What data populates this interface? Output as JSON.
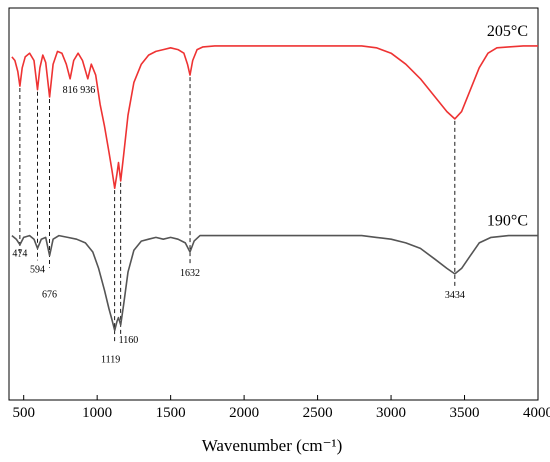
{
  "chart_data": {
    "type": "line",
    "title": "",
    "xlabel": "Wavenumber (cm⁻¹)",
    "ylabel": "",
    "xlim": [
      400,
      4000
    ],
    "x_ticks": [
      "500",
      "1000",
      "1500",
      "2000",
      "2500",
      "3000",
      "3500",
      "4000"
    ],
    "y_ticks": [],
    "grid": false,
    "series": [
      {
        "name": "205°C",
        "color": "#ee3333",
        "points": [
          [
            420,
            0.88
          ],
          [
            440,
            0.86
          ],
          [
            460,
            0.8
          ],
          [
            474,
            0.72
          ],
          [
            490,
            0.82
          ],
          [
            510,
            0.88
          ],
          [
            540,
            0.9
          ],
          [
            570,
            0.86
          ],
          [
            594,
            0.7
          ],
          [
            610,
            0.82
          ],
          [
            630,
            0.89
          ],
          [
            650,
            0.85
          ],
          [
            676,
            0.66
          ],
          [
            700,
            0.84
          ],
          [
            730,
            0.91
          ],
          [
            760,
            0.9
          ],
          [
            790,
            0.84
          ],
          [
            816,
            0.76
          ],
          [
            840,
            0.86
          ],
          [
            870,
            0.9
          ],
          [
            900,
            0.86
          ],
          [
            936,
            0.76
          ],
          [
            960,
            0.84
          ],
          [
            990,
            0.78
          ],
          [
            1020,
            0.62
          ],
          [
            1050,
            0.5
          ],
          [
            1080,
            0.36
          ],
          [
            1100,
            0.26
          ],
          [
            1119,
            0.16
          ],
          [
            1135,
            0.24
          ],
          [
            1145,
            0.3
          ],
          [
            1160,
            0.2
          ],
          [
            1180,
            0.34
          ],
          [
            1210,
            0.56
          ],
          [
            1250,
            0.74
          ],
          [
            1300,
            0.84
          ],
          [
            1350,
            0.89
          ],
          [
            1400,
            0.91
          ],
          [
            1450,
            0.92
          ],
          [
            1500,
            0.93
          ],
          [
            1550,
            0.92
          ],
          [
            1590,
            0.9
          ],
          [
            1615,
            0.84
          ],
          [
            1632,
            0.78
          ],
          [
            1650,
            0.86
          ],
          [
            1680,
            0.92
          ],
          [
            1720,
            0.935
          ],
          [
            1800,
            0.94
          ],
          [
            2000,
            0.94
          ],
          [
            2200,
            0.94
          ],
          [
            2400,
            0.94
          ],
          [
            2600,
            0.94
          ],
          [
            2800,
            0.94
          ],
          [
            2900,
            0.93
          ],
          [
            3000,
            0.9
          ],
          [
            3100,
            0.84
          ],
          [
            3200,
            0.76
          ],
          [
            3300,
            0.66
          ],
          [
            3380,
            0.58
          ],
          [
            3434,
            0.54
          ],
          [
            3480,
            0.58
          ],
          [
            3540,
            0.7
          ],
          [
            3600,
            0.82
          ],
          [
            3660,
            0.9
          ],
          [
            3720,
            0.93
          ],
          [
            3800,
            0.935
          ],
          [
            3900,
            0.94
          ],
          [
            4000,
            0.94
          ]
        ]
      },
      {
        "name": "190°C",
        "color": "#555555",
        "points": [
          [
            420,
            -0.1
          ],
          [
            450,
            -0.12
          ],
          [
            474,
            -0.15
          ],
          [
            500,
            -0.11
          ],
          [
            540,
            -0.1
          ],
          [
            570,
            -0.12
          ],
          [
            594,
            -0.17
          ],
          [
            620,
            -0.12
          ],
          [
            650,
            -0.11
          ],
          [
            676,
            -0.21
          ],
          [
            700,
            -0.12
          ],
          [
            740,
            -0.1
          ],
          [
            800,
            -0.11
          ],
          [
            860,
            -0.12
          ],
          [
            920,
            -0.14
          ],
          [
            970,
            -0.19
          ],
          [
            1010,
            -0.28
          ],
          [
            1050,
            -0.4
          ],
          [
            1080,
            -0.5
          ],
          [
            1100,
            -0.56
          ],
          [
            1119,
            -0.62
          ],
          [
            1135,
            -0.57
          ],
          [
            1145,
            -0.55
          ],
          [
            1160,
            -0.59
          ],
          [
            1180,
            -0.48
          ],
          [
            1210,
            -0.3
          ],
          [
            1250,
            -0.18
          ],
          [
            1300,
            -0.13
          ],
          [
            1350,
            -0.12
          ],
          [
            1400,
            -0.11
          ],
          [
            1450,
            -0.12
          ],
          [
            1500,
            -0.11
          ],
          [
            1550,
            -0.12
          ],
          [
            1600,
            -0.14
          ],
          [
            1632,
            -0.19
          ],
          [
            1660,
            -0.13
          ],
          [
            1700,
            -0.1
          ],
          [
            1800,
            -0.1
          ],
          [
            2000,
            -0.1
          ],
          [
            2200,
            -0.1
          ],
          [
            2400,
            -0.1
          ],
          [
            2600,
            -0.1
          ],
          [
            2800,
            -0.1
          ],
          [
            2900,
            -0.11
          ],
          [
            3000,
            -0.12
          ],
          [
            3100,
            -0.14
          ],
          [
            3200,
            -0.17
          ],
          [
            3300,
            -0.23
          ],
          [
            3380,
            -0.28
          ],
          [
            3434,
            -0.31
          ],
          [
            3480,
            -0.28
          ],
          [
            3540,
            -0.21
          ],
          [
            3600,
            -0.14
          ],
          [
            3680,
            -0.11
          ],
          [
            3800,
            -0.1
          ],
          [
            3900,
            -0.1
          ],
          [
            4000,
            -0.1
          ]
        ]
      }
    ],
    "series_labels": [
      "205°C",
      "190°C"
    ],
    "peak_markers": [
      474,
      594,
      676,
      1119,
      1160,
      1632,
      3434
    ],
    "peak_labels": [
      {
        "text": "816",
        "x": 816,
        "series": 0
      },
      {
        "text": "936",
        "x": 936,
        "series": 0
      },
      {
        "text": "474",
        "x": 474,
        "series": 1
      },
      {
        "text": "594",
        "x": 594,
        "series": 1
      },
      {
        "text": "676",
        "x": 676,
        "series": 1
      },
      {
        "text": "1119",
        "x": 1119,
        "series": 1
      },
      {
        "text": "1160",
        "x": 1160,
        "series": 1
      },
      {
        "text": "1632",
        "x": 1632,
        "series": 1
      },
      {
        "text": "3434",
        "x": 3434,
        "series": 1
      }
    ]
  }
}
